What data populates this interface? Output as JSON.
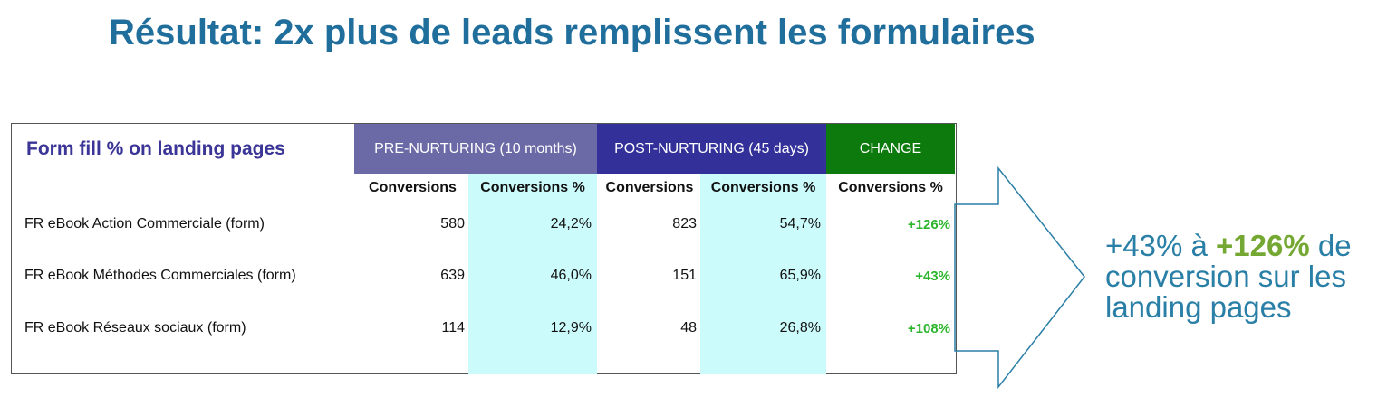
{
  "title": "Résultat: 2x plus de leads remplissent les formulaires",
  "table": {
    "title": "Form fill % on landing pages",
    "headers": {
      "pre": "PRE-NURTURING (10 months)",
      "post": "POST-NURTURING (45 days)",
      "change": "CHANGE"
    },
    "header_colors": {
      "pre": "#6c6aa6",
      "post": "#33309a",
      "change": "#0c7a0c"
    },
    "subheaders": [
      "Conversions",
      "Conversions %",
      "Conversions",
      "Conversions %",
      "Conversions %"
    ],
    "rows": [
      {
        "name": "FR eBook Action Commerciale (form)",
        "pre_conv": "580",
        "pre_pct": "24,2%",
        "post_conv": "823",
        "post_pct": "54,7%",
        "change": "+126%"
      },
      {
        "name": "FR eBook Méthodes Commerciales (form)",
        "pre_conv": "639",
        "pre_pct": "46,0%",
        "post_conv": "151",
        "post_pct": "65,9%",
        "change": "+43%"
      },
      {
        "name": "FR eBook Réseaux sociaux (form)",
        "pre_conv": "114",
        "pre_pct": "12,9%",
        "post_conv": "48",
        "post_pct": "26,8%",
        "change": "+108%"
      }
    ]
  },
  "callout": {
    "part1": "+43% à ",
    "highlight": "+126%",
    "part2": " de",
    "line2": "conversion sur les",
    "line3": "landing pages"
  }
}
